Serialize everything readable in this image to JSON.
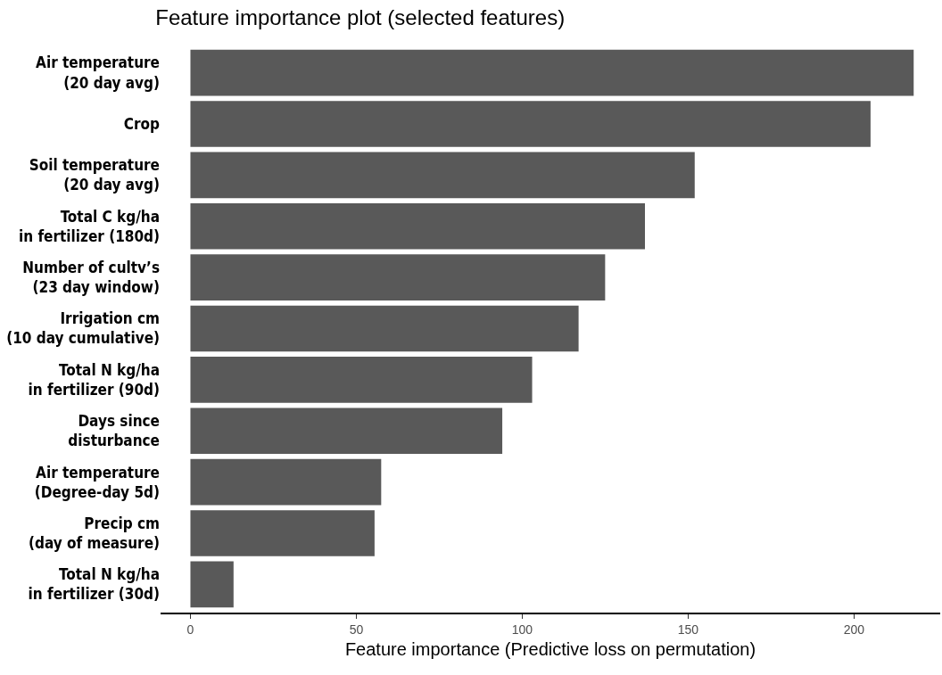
{
  "chart_data": {
    "type": "bar",
    "orientation": "horizontal",
    "title": "Feature importance plot (selected features)",
    "xlabel": "Feature importance (Predictive loss on permutation)",
    "categories": [
      "Air temperature\n(20 day avg)",
      "Crop",
      "Soil temperature\n(20 day avg)",
      "Total C kg/ha\nin fertilizer (180d)",
      "Number of cultv’s\n(23 day window)",
      "Irrigation cm\n(10 day cumulative)",
      "Total N kg/ha\nin fertilizer (90d)",
      "Days since\ndisturbance",
      "Air temperature\n(Degree-day 5d)",
      "Precip cm\n(day of measure)",
      "Total N kg/ha\nin fertilizer (30d)"
    ],
    "values": [
      218,
      205,
      152,
      137,
      125,
      117,
      103,
      94,
      57.5,
      55.5,
      13
    ],
    "color": "#595959",
    "xlim": [
      -9,
      226
    ],
    "xticks": [
      0,
      50,
      100,
      150,
      200
    ],
    "grid": false
  }
}
